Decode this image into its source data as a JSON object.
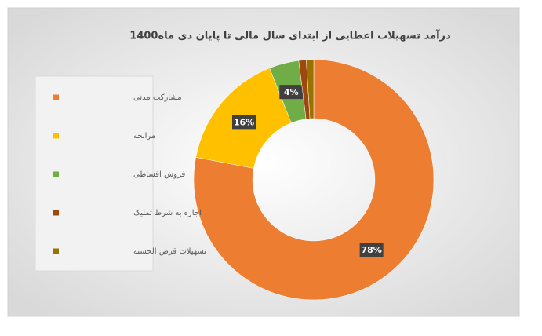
{
  "chart_data": {
    "type": "donut",
    "title": "درآمد تسهیلات اعطایی از ابتدای سال مالی تا پایان دی ماه1400",
    "categories": [
      "مشارکت مدنی",
      "مرابحه",
      "فروش اقساطی",
      "اجاره به شرط تملیک",
      "تسهیلات قرض الحسنه"
    ],
    "values": [
      78,
      16,
      4,
      1,
      1
    ],
    "value_labels": [
      "78%",
      "16%",
      "4%",
      null,
      null
    ],
    "colors": [
      "#ED7D31",
      "#FFC000",
      "#70AD47",
      "#9E480E",
      "#997300"
    ],
    "legend": "left"
  }
}
